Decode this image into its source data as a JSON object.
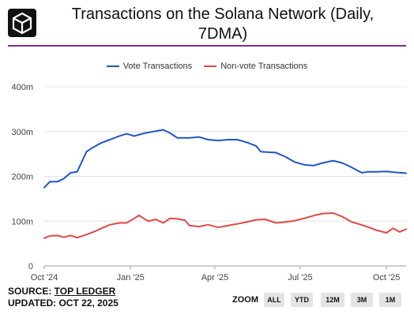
{
  "header": {
    "title_line1": "Transactions on the Solana Network (Daily,",
    "title_line2": "7DMA)"
  },
  "colors": {
    "vote": "#1f55c4",
    "nonvote": "#e04848",
    "rule": "#7b2f8a"
  },
  "chart_data": {
    "type": "line",
    "title": "Transactions on the Solana Network (Daily, 7DMA)",
    "ylim": [
      0,
      400
    ],
    "y_ticks": [
      "0",
      "100m",
      "200m",
      "300m",
      "400m"
    ],
    "y_tick_values": [
      0,
      100,
      200,
      300,
      400
    ],
    "x_ticks": [
      "Oct '24",
      "Jan '25",
      "Apr '25",
      "Jul '25",
      "Oct '25"
    ],
    "x_tick_values": [
      "2024-10-01",
      "2025-01-01",
      "2025-04-01",
      "2025-07-01",
      "2025-10-01"
    ],
    "xlim": [
      "2024-10-01",
      "2025-10-22"
    ],
    "grid": true,
    "legend_position": "top-center",
    "series": [
      {
        "name": "Vote Transactions",
        "color": "#1f55c4",
        "x": [
          "2024-10-01",
          "2024-10-07",
          "2024-10-15",
          "2024-10-22",
          "2024-10-29",
          "2024-11-05",
          "2024-11-10",
          "2024-11-15",
          "2024-11-20",
          "2024-11-25",
          "2024-12-01",
          "2024-12-10",
          "2024-12-20",
          "2024-12-28",
          "2025-01-05",
          "2025-01-15",
          "2025-01-25",
          "2025-02-05",
          "2025-02-12",
          "2025-02-20",
          "2025-02-26",
          "2025-03-05",
          "2025-03-15",
          "2025-03-25",
          "2025-04-05",
          "2025-04-15",
          "2025-04-25",
          "2025-05-05",
          "2025-05-15",
          "2025-05-20",
          "2025-05-28",
          "2025-06-05",
          "2025-06-15",
          "2025-06-25",
          "2025-07-05",
          "2025-07-15",
          "2025-07-25",
          "2025-08-05",
          "2025-08-15",
          "2025-08-25",
          "2025-09-01",
          "2025-09-05",
          "2025-09-10",
          "2025-09-20",
          "2025-10-01",
          "2025-10-10",
          "2025-10-22"
        ],
        "values": [
          175,
          188,
          188,
          195,
          208,
          210,
          232,
          255,
          262,
          268,
          275,
          282,
          290,
          295,
          290,
          296,
          300,
          304,
          297,
          286,
          286,
          286,
          288,
          282,
          280,
          282,
          282,
          276,
          268,
          255,
          254,
          253,
          244,
          232,
          226,
          224,
          230,
          235,
          230,
          220,
          212,
          208,
          210,
          210,
          211,
          209,
          207
        ]
      },
      {
        "name": "Non-vote Transactions",
        "color": "#e04848",
        "x": [
          "2024-10-01",
          "2024-10-07",
          "2024-10-15",
          "2024-10-22",
          "2024-10-29",
          "2024-11-05",
          "2024-11-15",
          "2024-11-25",
          "2024-12-01",
          "2024-12-10",
          "2024-12-20",
          "2024-12-28",
          "2025-01-05",
          "2025-01-10",
          "2025-01-20",
          "2025-01-28",
          "2025-02-05",
          "2025-02-12",
          "2025-02-20",
          "2025-02-28",
          "2025-03-05",
          "2025-03-15",
          "2025-03-25",
          "2025-04-05",
          "2025-04-15",
          "2025-04-25",
          "2025-05-05",
          "2025-05-15",
          "2025-05-25",
          "2025-06-05",
          "2025-06-15",
          "2025-06-25",
          "2025-07-05",
          "2025-07-15",
          "2025-07-25",
          "2025-08-05",
          "2025-08-15",
          "2025-08-25",
          "2025-09-01",
          "2025-09-10",
          "2025-09-20",
          "2025-10-01",
          "2025-10-08",
          "2025-10-15",
          "2025-10-22"
        ],
        "values": [
          62,
          67,
          68,
          64,
          68,
          63,
          70,
          78,
          84,
          92,
          96,
          96,
          106,
          113,
          100,
          104,
          96,
          106,
          105,
          102,
          90,
          88,
          92,
          86,
          90,
          94,
          98,
          103,
          104,
          96,
          98,
          101,
          106,
          112,
          117,
          118,
          110,
          98,
          94,
          88,
          80,
          74,
          84,
          76,
          82
        ]
      }
    ]
  },
  "footer": {
    "source_prefix": "SOURCE: ",
    "source_name": "TOP LEDGER",
    "updated": "UPDATED: OCT 22, 2025"
  },
  "zoom": {
    "label": "ZOOM",
    "buttons": [
      "ALL",
      "YTD",
      "12M",
      "3M",
      "1M"
    ]
  }
}
